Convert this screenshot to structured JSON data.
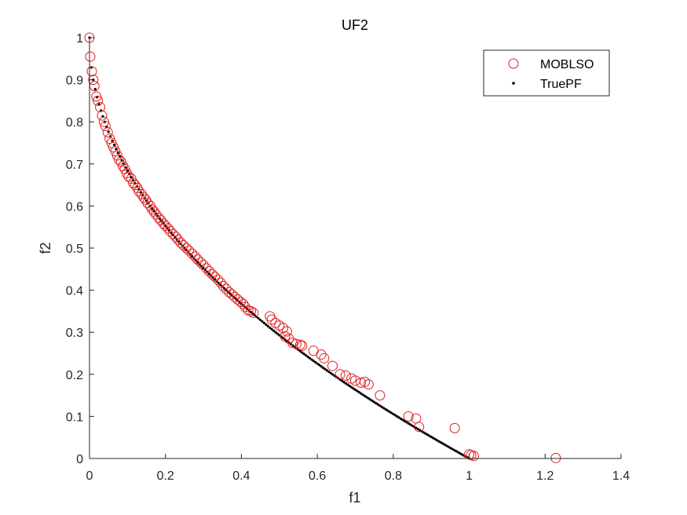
{
  "chart_data": {
    "type": "scatter",
    "title": "UF2",
    "xlabel": "f1",
    "ylabel": "f2",
    "xlim": [
      0,
      1.4
    ],
    "ylim": [
      0,
      1
    ],
    "x_ticks": [
      "0",
      "0.2",
      "0.4",
      "0.6",
      "0.8",
      "1",
      "1.2",
      "1.4"
    ],
    "y_ticks": [
      "0",
      "0.1",
      "0.2",
      "0.3",
      "0.4",
      "0.5",
      "0.6",
      "0.7",
      "0.8",
      "0.9",
      "1"
    ],
    "grid": false,
    "legend_position": "top-right",
    "colors": {
      "mobls": "#e02020",
      "truepf": "#000000",
      "axis": "#262626"
    },
    "series": [
      {
        "name": "MOBLSO",
        "marker": "open-circle",
        "points": [
          [
            0.0,
            1.0
          ],
          [
            0.002,
            0.955
          ],
          [
            0.006,
            0.92
          ],
          [
            0.01,
            0.9
          ],
          [
            0.013,
            0.885
          ],
          [
            0.018,
            0.86
          ],
          [
            0.022,
            0.85
          ],
          [
            0.028,
            0.835
          ],
          [
            0.033,
            0.815
          ],
          [
            0.038,
            0.8
          ],
          [
            0.042,
            0.79
          ],
          [
            0.048,
            0.775
          ],
          [
            0.053,
            0.76
          ],
          [
            0.058,
            0.75
          ],
          [
            0.063,
            0.74
          ],
          [
            0.068,
            0.73
          ],
          [
            0.073,
            0.72
          ],
          [
            0.078,
            0.71
          ],
          [
            0.083,
            0.705
          ],
          [
            0.088,
            0.695
          ],
          [
            0.093,
            0.688
          ],
          [
            0.098,
            0.678
          ],
          [
            0.103,
            0.67
          ],
          [
            0.11,
            0.665
          ],
          [
            0.115,
            0.655
          ],
          [
            0.12,
            0.65
          ],
          [
            0.126,
            0.643
          ],
          [
            0.13,
            0.635
          ],
          [
            0.137,
            0.628
          ],
          [
            0.143,
            0.62
          ],
          [
            0.148,
            0.615
          ],
          [
            0.153,
            0.607
          ],
          [
            0.16,
            0.6
          ],
          [
            0.165,
            0.592
          ],
          [
            0.17,
            0.587
          ],
          [
            0.175,
            0.58
          ],
          [
            0.182,
            0.572
          ],
          [
            0.188,
            0.566
          ],
          [
            0.195,
            0.558
          ],
          [
            0.2,
            0.553
          ],
          [
            0.207,
            0.547
          ],
          [
            0.213,
            0.54
          ],
          [
            0.22,
            0.533
          ],
          [
            0.227,
            0.527
          ],
          [
            0.233,
            0.52
          ],
          [
            0.24,
            0.513
          ],
          [
            0.247,
            0.507
          ],
          [
            0.255,
            0.5
          ],
          [
            0.262,
            0.494
          ],
          [
            0.27,
            0.487
          ],
          [
            0.278,
            0.48
          ],
          [
            0.285,
            0.473
          ],
          [
            0.293,
            0.466
          ],
          [
            0.3,
            0.46
          ],
          [
            0.308,
            0.452
          ],
          [
            0.315,
            0.445
          ],
          [
            0.323,
            0.438
          ],
          [
            0.33,
            0.432
          ],
          [
            0.338,
            0.425
          ],
          [
            0.345,
            0.418
          ],
          [
            0.352,
            0.41
          ],
          [
            0.36,
            0.403
          ],
          [
            0.368,
            0.395
          ],
          [
            0.375,
            0.39
          ],
          [
            0.382,
            0.384
          ],
          [
            0.39,
            0.378
          ],
          [
            0.398,
            0.372
          ],
          [
            0.405,
            0.367
          ],
          [
            0.41,
            0.36
          ],
          [
            0.418,
            0.352
          ],
          [
            0.425,
            0.35
          ],
          [
            0.432,
            0.346
          ],
          [
            0.475,
            0.338
          ],
          [
            0.48,
            0.33
          ],
          [
            0.49,
            0.322
          ],
          [
            0.5,
            0.316
          ],
          [
            0.51,
            0.31
          ],
          [
            0.52,
            0.302
          ],
          [
            0.515,
            0.29
          ],
          [
            0.525,
            0.285
          ],
          [
            0.535,
            0.275
          ],
          [
            0.545,
            0.272
          ],
          [
            0.555,
            0.27
          ],
          [
            0.56,
            0.268
          ],
          [
            0.59,
            0.256
          ],
          [
            0.61,
            0.247
          ],
          [
            0.618,
            0.238
          ],
          [
            0.64,
            0.22
          ],
          [
            0.66,
            0.2
          ],
          [
            0.675,
            0.197
          ],
          [
            0.69,
            0.19
          ],
          [
            0.7,
            0.185
          ],
          [
            0.715,
            0.18
          ],
          [
            0.725,
            0.182
          ],
          [
            0.735,
            0.176
          ],
          [
            0.765,
            0.15
          ],
          [
            0.84,
            0.1
          ],
          [
            0.86,
            0.095
          ],
          [
            0.868,
            0.075
          ],
          [
            0.962,
            0.072
          ],
          [
            1.0,
            0.01
          ],
          [
            1.005,
            0.008
          ],
          [
            1.012,
            0.006
          ],
          [
            1.228,
            0.001
          ]
        ]
      },
      {
        "name": "TruePF",
        "marker": "dot",
        "function": "f2 = 1 - sqrt(f1)",
        "x_range": [
          0,
          1
        ],
        "n_points": 200
      }
    ]
  }
}
